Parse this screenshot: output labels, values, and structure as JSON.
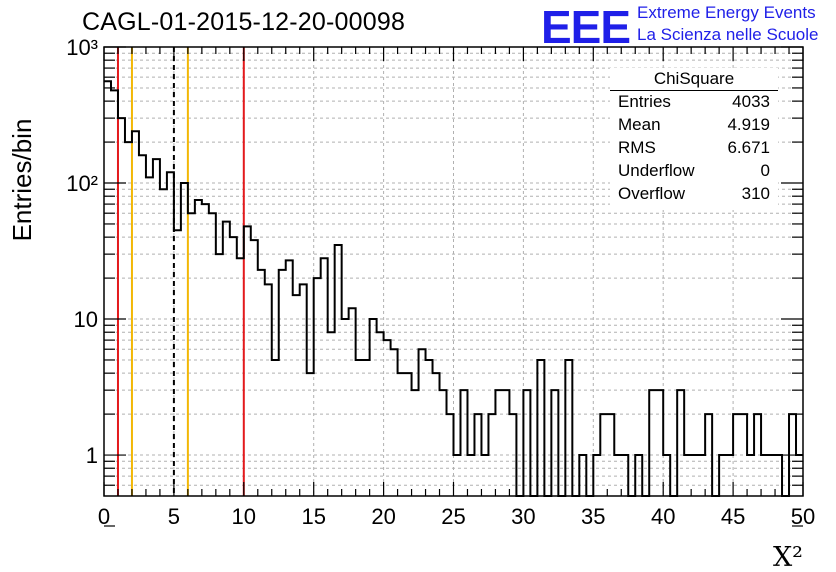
{
  "chart_data": {
    "type": "histogram",
    "title": "CAGL-01-2015-12-20-00098",
    "xlabel": "X²",
    "ylabel": "Entries/bin",
    "xlim": [
      0,
      50
    ],
    "ylim": [
      0.5,
      1000
    ],
    "yscale": "log",
    "grid": true,
    "bin_width": 0.5,
    "x_ticks": [
      "0",
      "5",
      "10",
      "15",
      "20",
      "25",
      "30",
      "35",
      "40",
      "45",
      "50"
    ],
    "y_ticks": [
      {
        "value": 1000,
        "label": "10³"
      },
      {
        "value": 100,
        "label": "10²"
      },
      {
        "value": 10,
        "label": "10"
      },
      {
        "value": 1,
        "label": "1"
      }
    ],
    "values": [
      560,
      480,
      300,
      200,
      240,
      160,
      110,
      150,
      90,
      120,
      45,
      100,
      60,
      75,
      70,
      60,
      30,
      52,
      40,
      28,
      48,
      38,
      23,
      18,
      5,
      23,
      27,
      15,
      18,
      4,
      20,
      28,
      8,
      35,
      10,
      12,
      5,
      5,
      10,
      8,
      7,
      6,
      4,
      4,
      3,
      6,
      5,
      4,
      3,
      2,
      1,
      3,
      1,
      2,
      1,
      2,
      3,
      3,
      2,
      0,
      3,
      0,
      5,
      0,
      3,
      0,
      5,
      0,
      1,
      0,
      1,
      2,
      2,
      1,
      1,
      0,
      1,
      0,
      3,
      3,
      1,
      0,
      3,
      1,
      1,
      1,
      2,
      0,
      1,
      1,
      2,
      2,
      1,
      2,
      1,
      1,
      1,
      0,
      2,
      1
    ],
    "vertical_lines": [
      {
        "x": 1,
        "color": "#e31a1c",
        "style": "solid"
      },
      {
        "x": 2,
        "color": "#f2b705",
        "style": "solid"
      },
      {
        "x": 5,
        "color": "#000000",
        "style": "dashed"
      },
      {
        "x": 6,
        "color": "#f2b705",
        "style": "solid"
      },
      {
        "x": 10,
        "color": "#e31a1c",
        "style": "solid"
      }
    ],
    "stats_box": {
      "title": "ChiSquare",
      "rows": [
        {
          "label": "Entries",
          "value": "4033"
        },
        {
          "label": "Mean",
          "value": "4.919"
        },
        {
          "label": "RMS",
          "value": "6.671"
        },
        {
          "label": "Underflow",
          "value": "0"
        },
        {
          "label": "Overflow",
          "value": "310"
        }
      ]
    }
  },
  "logo": {
    "mark": "EEE",
    "line1": "Extreme Energy Events",
    "line2": "La Scienza nelle Scuole",
    "color": "#1f1fe8"
  }
}
